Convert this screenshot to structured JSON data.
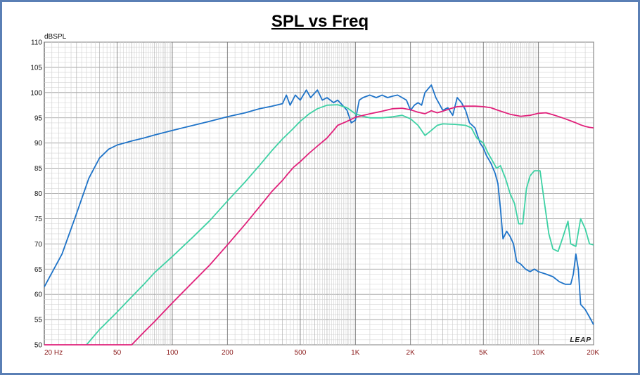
{
  "chart_data": {
    "type": "line",
    "title": "SPL vs Freq",
    "ylabel": "dBSPL",
    "xscale": "log",
    "xlim": [
      20,
      20000
    ],
    "ylim": [
      50,
      110
    ],
    "grid": true,
    "logo": "LEAP",
    "y_ticks": [
      50,
      55,
      60,
      65,
      70,
      75,
      80,
      85,
      90,
      95,
      100,
      105,
      110
    ],
    "x_ticks": [
      {
        "v": 20,
        "label": "20  Hz"
      },
      {
        "v": 50,
        "label": "50"
      },
      {
        "v": 100,
        "label": "100"
      },
      {
        "v": 200,
        "label": "200"
      },
      {
        "v": 500,
        "label": "500"
      },
      {
        "v": 1000,
        "label": "1K"
      },
      {
        "v": 2000,
        "label": "2K"
      },
      {
        "v": 5000,
        "label": "5K"
      },
      {
        "v": 10000,
        "label": "10K"
      },
      {
        "v": 20000,
        "label": "20K"
      }
    ],
    "series": [
      {
        "color": "#1e73c8",
        "points": [
          [
            20,
            61.5
          ],
          [
            25,
            68
          ],
          [
            30,
            76
          ],
          [
            35,
            83
          ],
          [
            40,
            87
          ],
          [
            45,
            88.8
          ],
          [
            50,
            89.6
          ],
          [
            60,
            90.4
          ],
          [
            70,
            91
          ],
          [
            80,
            91.6
          ],
          [
            100,
            92.5
          ],
          [
            130,
            93.5
          ],
          [
            160,
            94.3
          ],
          [
            200,
            95.2
          ],
          [
            250,
            96
          ],
          [
            300,
            96.8
          ],
          [
            350,
            97.3
          ],
          [
            400,
            97.8
          ],
          [
            420,
            99.5
          ],
          [
            440,
            97.5
          ],
          [
            470,
            99.5
          ],
          [
            500,
            98.5
          ],
          [
            540,
            100.5
          ],
          [
            570,
            99
          ],
          [
            620,
            100.5
          ],
          [
            660,
            98.5
          ],
          [
            700,
            99
          ],
          [
            760,
            98
          ],
          [
            800,
            98.5
          ],
          [
            850,
            97.5
          ],
          [
            900,
            96.5
          ],
          [
            950,
            94
          ],
          [
            1000,
            94.5
          ],
          [
            1050,
            98.5
          ],
          [
            1100,
            99
          ],
          [
            1200,
            99.5
          ],
          [
            1300,
            99
          ],
          [
            1400,
            99.5
          ],
          [
            1500,
            99
          ],
          [
            1600,
            99.3
          ],
          [
            1700,
            99.5
          ],
          [
            1800,
            99
          ],
          [
            1900,
            98.5
          ],
          [
            2000,
            96.5
          ],
          [
            2100,
            97.5
          ],
          [
            2200,
            98
          ],
          [
            2300,
            97.5
          ],
          [
            2400,
            100
          ],
          [
            2600,
            101.5
          ],
          [
            2750,
            99
          ],
          [
            2900,
            97.5
          ],
          [
            3000,
            96.5
          ],
          [
            3200,
            97
          ],
          [
            3400,
            95.5
          ],
          [
            3600,
            99
          ],
          [
            3800,
            98
          ],
          [
            4000,
            96.5
          ],
          [
            4200,
            94
          ],
          [
            4500,
            93
          ],
          [
            4800,
            90
          ],
          [
            5000,
            89
          ],
          [
            5200,
            87.5
          ],
          [
            5500,
            86
          ],
          [
            5800,
            84
          ],
          [
            6000,
            82
          ],
          [
            6200,
            77
          ],
          [
            6400,
            71
          ],
          [
            6700,
            72.5
          ],
          [
            7000,
            71.5
          ],
          [
            7300,
            70
          ],
          [
            7600,
            66.5
          ],
          [
            8000,
            66
          ],
          [
            8500,
            65
          ],
          [
            9000,
            64.5
          ],
          [
            9500,
            65
          ],
          [
            10000,
            64.5
          ],
          [
            11000,
            64
          ],
          [
            12000,
            63.5
          ],
          [
            13000,
            62.5
          ],
          [
            14000,
            62
          ],
          [
            15000,
            62
          ],
          [
            15500,
            64
          ],
          [
            16000,
            68
          ],
          [
            16500,
            65
          ],
          [
            17000,
            58
          ],
          [
            18000,
            57
          ],
          [
            19000,
            55.5
          ],
          [
            20000,
            54
          ]
        ]
      },
      {
        "color": "#3dd1a4",
        "points": [
          [
            34,
            50
          ],
          [
            40,
            53
          ],
          [
            50,
            56.5
          ],
          [
            60,
            59.5
          ],
          [
            70,
            62
          ],
          [
            80,
            64.3
          ],
          [
            100,
            67.5
          ],
          [
            130,
            71.4
          ],
          [
            160,
            74.6
          ],
          [
            200,
            78.5
          ],
          [
            250,
            82.3
          ],
          [
            300,
            85.6
          ],
          [
            350,
            88.5
          ],
          [
            400,
            90.8
          ],
          [
            450,
            92.6
          ],
          [
            500,
            94.3
          ],
          [
            560,
            95.8
          ],
          [
            620,
            96.8
          ],
          [
            700,
            97.5
          ],
          [
            800,
            97.6
          ],
          [
            900,
            97
          ],
          [
            1000,
            95.8
          ],
          [
            1100,
            95.3
          ],
          [
            1200,
            95
          ],
          [
            1400,
            95
          ],
          [
            1600,
            95.2
          ],
          [
            1800,
            95.5
          ],
          [
            2000,
            94.8
          ],
          [
            2200,
            93.5
          ],
          [
            2400,
            91.5
          ],
          [
            2600,
            92.5
          ],
          [
            2800,
            93.5
          ],
          [
            3000,
            93.8
          ],
          [
            3500,
            93.7
          ],
          [
            4000,
            93.5
          ],
          [
            4300,
            93
          ],
          [
            4600,
            91
          ],
          [
            5000,
            90
          ],
          [
            5300,
            88
          ],
          [
            5600,
            86.5
          ],
          [
            5900,
            85
          ],
          [
            6200,
            85.5
          ],
          [
            6600,
            83
          ],
          [
            7000,
            80
          ],
          [
            7400,
            78
          ],
          [
            7800,
            74
          ],
          [
            8200,
            74
          ],
          [
            8600,
            81
          ],
          [
            9000,
            83.5
          ],
          [
            9500,
            84.5
          ],
          [
            10200,
            84.5
          ],
          [
            10800,
            78
          ],
          [
            11400,
            72
          ],
          [
            12000,
            69
          ],
          [
            12800,
            68.5
          ],
          [
            13500,
            71
          ],
          [
            14500,
            74.5
          ],
          [
            15000,
            70
          ],
          [
            16000,
            69.5
          ],
          [
            17000,
            75
          ],
          [
            18000,
            73
          ],
          [
            19000,
            70
          ],
          [
            20000,
            69.8
          ]
        ]
      },
      {
        "color": "#e0207a",
        "points": [
          [
            20,
            50
          ],
          [
            40,
            50
          ],
          [
            60,
            50
          ],
          [
            70,
            52.5
          ],
          [
            80,
            54.6
          ],
          [
            100,
            58.3
          ],
          [
            130,
            62.5
          ],
          [
            160,
            65.8
          ],
          [
            200,
            69.8
          ],
          [
            250,
            73.9
          ],
          [
            300,
            77.4
          ],
          [
            350,
            80.4
          ],
          [
            400,
            82.6
          ],
          [
            430,
            84
          ],
          [
            460,
            85.2
          ],
          [
            500,
            86.3
          ],
          [
            560,
            88
          ],
          [
            620,
            89.4
          ],
          [
            700,
            91
          ],
          [
            760,
            92.5
          ],
          [
            800,
            93.5
          ],
          [
            900,
            94.3
          ],
          [
            1000,
            95.1
          ],
          [
            1200,
            95.8
          ],
          [
            1400,
            96.3
          ],
          [
            1600,
            96.8
          ],
          [
            1800,
            96.9
          ],
          [
            2000,
            96.6
          ],
          [
            2200,
            96.1
          ],
          [
            2400,
            95.8
          ],
          [
            2600,
            96.4
          ],
          [
            2800,
            96
          ],
          [
            3000,
            96.3
          ],
          [
            3300,
            96.8
          ],
          [
            3600,
            97.2
          ],
          [
            4000,
            97.3
          ],
          [
            4500,
            97.3
          ],
          [
            5000,
            97.2
          ],
          [
            5500,
            97
          ],
          [
            6000,
            96.5
          ],
          [
            7000,
            95.7
          ],
          [
            8000,
            95.3
          ],
          [
            9000,
            95.5
          ],
          [
            10000,
            95.9
          ],
          [
            11000,
            96
          ],
          [
            12000,
            95.6
          ],
          [
            13000,
            95.2
          ],
          [
            14000,
            94.8
          ],
          [
            15000,
            94.4
          ],
          [
            16000,
            94
          ],
          [
            17000,
            93.6
          ],
          [
            18000,
            93.3
          ],
          [
            19000,
            93.1
          ],
          [
            20000,
            93
          ]
        ]
      }
    ]
  }
}
